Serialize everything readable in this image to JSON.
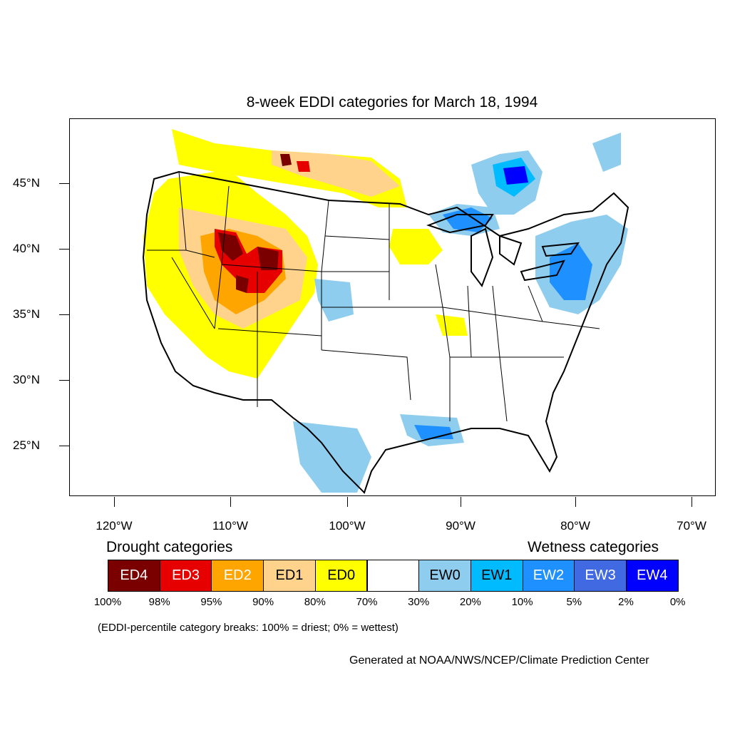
{
  "title": "8-week EDDI categories for March 18, 1994",
  "lat_labels": [
    "45°N",
    "40°N",
    "35°N",
    "30°N",
    "25°N"
  ],
  "lon_labels": [
    "120°W",
    "110°W",
    "100°W",
    "90°W",
    "80°W",
    "70°W"
  ],
  "legend": {
    "drought_heading": "Drought categories",
    "wetness_heading": "Wetness categories",
    "categories": [
      {
        "label": "ED4",
        "color": "#7a0000",
        "text_color": "#ffffff"
      },
      {
        "label": "ED3",
        "color": "#e60000",
        "text_color": "#ffffff"
      },
      {
        "label": "ED2",
        "color": "#ffa500",
        "text_color": "#ffffff"
      },
      {
        "label": "ED1",
        "color": "#ffd38c",
        "text_color": "#000000"
      },
      {
        "label": "ED0",
        "color": "#ffff00",
        "text_color": "#000000"
      },
      {
        "label": "",
        "color": "#ffffff",
        "text_color": "#000000"
      },
      {
        "label": "EW0",
        "color": "#8ecdee",
        "text_color": "#000000"
      },
      {
        "label": "EW1",
        "color": "#00bbff",
        "text_color": "#000000"
      },
      {
        "label": "EW2",
        "color": "#1e90ff",
        "text_color": "#ffffff"
      },
      {
        "label": "EW3",
        "color": "#4169e1",
        "text_color": "#ffffff"
      },
      {
        "label": "EW4",
        "color": "#0000ff",
        "text_color": "#ffffff"
      }
    ],
    "breaks": [
      "100%",
      "98%",
      "95%",
      "90%",
      "80%",
      "70%",
      "30%",
      "20%",
      "10%",
      "5%",
      "2%",
      "0%"
    ],
    "note": "(EDDI-percentile category breaks: 100% = driest; 0% = wettest)"
  },
  "credit": "Generated at NOAA/NWS/NCEP/Climate Prediction Center"
}
